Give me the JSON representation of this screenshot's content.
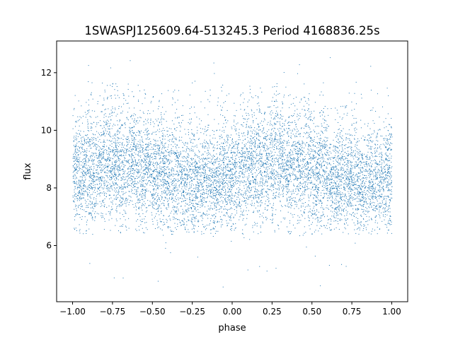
{
  "chart_data": {
    "type": "scatter",
    "title": "1SWASPJ125609.64-513245.3 Period 4168836.25s",
    "xlabel": "phase",
    "ylabel": "flux",
    "xlim": [
      -1.1,
      1.1
    ],
    "ylim": [
      4.05,
      13.1
    ],
    "xticks": [
      -1.0,
      -0.75,
      -0.5,
      -0.25,
      0.0,
      0.25,
      0.5,
      0.75,
      1.0
    ],
    "xtick_labels": [
      "−1.00",
      "−0.75",
      "−0.50",
      "−0.25",
      "0.00",
      "0.25",
      "0.50",
      "0.75",
      "1.00"
    ],
    "yticks": [
      6,
      8,
      10,
      12
    ],
    "ytick_labels": [
      "6",
      "8",
      "10",
      "12"
    ],
    "grid": false,
    "point_color": "#1f77b4",
    "series": [
      {
        "x_range": [
          -1.0,
          1.0
        ],
        "median_flux": 8.5,
        "typical_flux_range": [
          7.0,
          10.5
        ],
        "outlier_flux_range": [
          4.5,
          12.6
        ]
      }
    ]
  }
}
